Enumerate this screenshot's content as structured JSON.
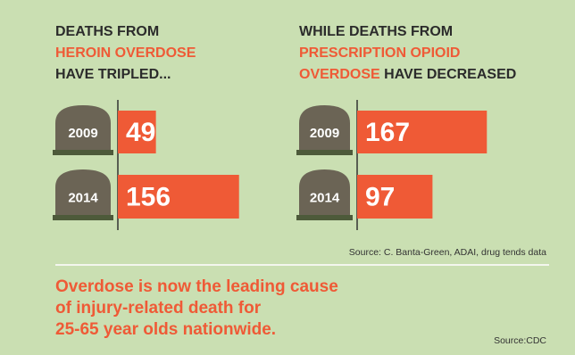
{
  "chart_data": [
    {
      "type": "bar",
      "orientation": "horizontal",
      "title": [
        [
          "DEATHS FROM"
        ],
        [
          "HEROIN OVERDOSE"
        ],
        [
          "HAVE TRIPLED..."
        ]
      ],
      "title_accent": [
        [
          false
        ],
        [
          true
        ],
        [
          false
        ]
      ],
      "categories": [
        "2009",
        "2014"
      ],
      "values": [
        49,
        156
      ],
      "color": "#ef5a36"
    },
    {
      "type": "bar",
      "orientation": "horizontal",
      "title": [
        [
          "WHILE DEATHS FROM"
        ],
        [
          "PRESCRIPTION OPIOID"
        ],
        [
          "OVERDOSE",
          " HAVE DECREASED"
        ]
      ],
      "title_accent": [
        [
          false
        ],
        [
          true
        ],
        [
          true,
          false
        ]
      ],
      "categories": [
        "2009",
        "2014"
      ],
      "values": [
        167,
        97
      ],
      "color": "#ef5a36"
    }
  ],
  "source": "Source: C. Banta-Green, ADAI,  drug tends data",
  "footer": {
    "message": [
      "Overdose is now the leading cause",
      "of injury-related death for",
      "25-65 year olds nationwide."
    ],
    "source": "Source:CDC"
  }
}
